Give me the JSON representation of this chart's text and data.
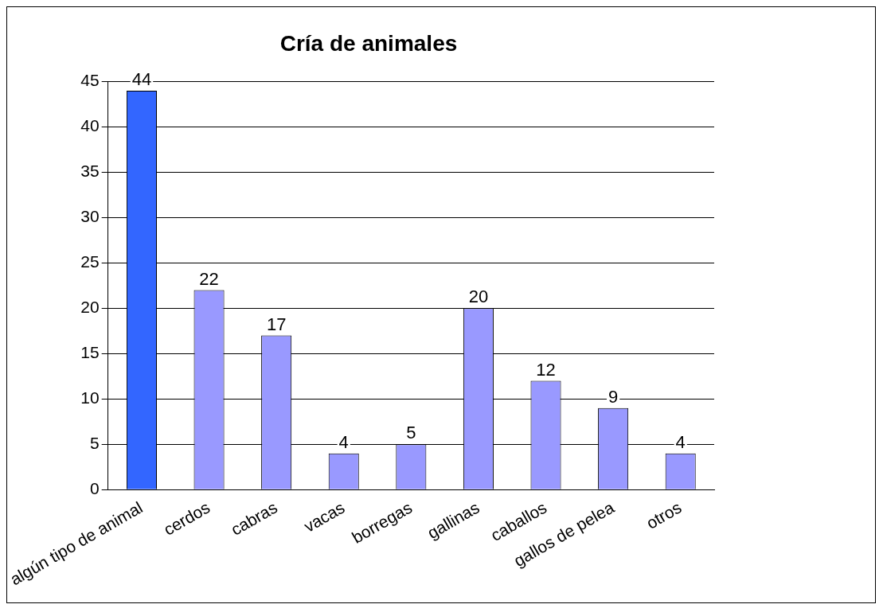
{
  "chart_data": {
    "type": "bar",
    "title": "Cría de animales",
    "categories": [
      "algún tipo de animal",
      "cerdos",
      "cabras",
      "vacas",
      "borregas",
      "gallinas",
      "caballos",
      "gallos de pelea",
      "otros"
    ],
    "values": [
      44,
      22,
      17,
      4,
      5,
      20,
      12,
      9,
      4
    ],
    "colors": [
      "#3366ff",
      "#9999ff",
      "#9999ff",
      "#9999ff",
      "#9999ff",
      "#9999ff",
      "#9999ff",
      "#9999ff",
      "#9999ff"
    ],
    "ylim": [
      0,
      45
    ],
    "yticks": [
      0,
      5,
      10,
      15,
      20,
      25,
      30,
      35,
      40,
      45
    ],
    "grid": "y",
    "data_labels": true,
    "legend": false
  }
}
